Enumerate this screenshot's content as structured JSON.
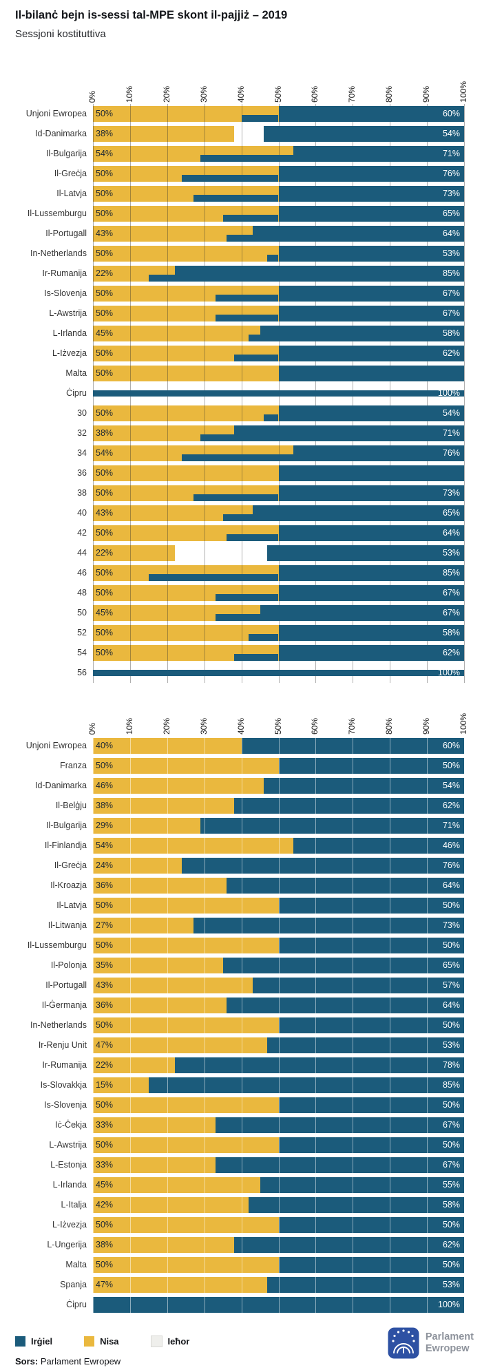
{
  "header": {
    "title": "Il-bilanċ bejn is-sessi tal-MPE skont il-pajjiż – 2019",
    "subtitle": "Sessjoni kostituttiva"
  },
  "colors": {
    "irgiel": "#1b5b7b",
    "nisa": "#eab83e",
    "iehor": "#efefec",
    "iehor_border": "#d8d8d4"
  },
  "legend": {
    "items": [
      {
        "label": "Irġiel",
        "color": "#1b5b7b"
      },
      {
        "label": "Nisa",
        "color": "#eab83e"
      },
      {
        "label": "Ieħor",
        "color": "#efefec",
        "border": "#d8d8d4"
      }
    ]
  },
  "footer": {
    "source_label": "Sors:",
    "source_value": "Parlament Ewropew",
    "logo_line1": "Parlament",
    "logo_line2": "Ewropew"
  },
  "chart_data": [
    {
      "type": "bar",
      "orientation": "horizontal",
      "stacked": true,
      "xlim": [
        0,
        100
      ],
      "x_ticks": [
        "0%",
        "10%",
        "20%",
        "30%",
        "40%",
        "50%",
        "60%",
        "70%",
        "80%",
        "90%",
        "100%"
      ],
      "grid": "vertical",
      "series_keys": [
        "nisa",
        "irgiel"
      ],
      "rows": [
        {
          "label": "Unjoni Ewropea",
          "nisa": 50,
          "irgiel": 60
        },
        {
          "label": "Id-Danimarka",
          "nisa": 38,
          "irgiel": 54
        },
        {
          "label": "Il-Bulgarija",
          "nisa": 54,
          "irgiel": 71
        },
        {
          "label": "Il-Greċja",
          "nisa": 50,
          "irgiel": 76
        },
        {
          "label": "Il-Latvja",
          "nisa": 50,
          "irgiel": 73
        },
        {
          "label": "Il-Lussemburgu",
          "nisa": 50,
          "irgiel": 65
        },
        {
          "label": "Il-Portugall",
          "nisa": 43,
          "irgiel": 64
        },
        {
          "label": "In-Netherlands",
          "nisa": 50,
          "irgiel": 53
        },
        {
          "label": "Ir-Rumanija",
          "nisa": 22,
          "irgiel": 85
        },
        {
          "label": "Is-Slovenja",
          "nisa": 50,
          "irgiel": 67
        },
        {
          "label": "L-Awstrija",
          "nisa": 50,
          "irgiel": 67
        },
        {
          "label": "L-Irlanda",
          "nisa": 45,
          "irgiel": 58
        },
        {
          "label": "L-Iżvezja",
          "nisa": 50,
          "irgiel": 62
        },
        {
          "label": "Malta",
          "nisa": 50,
          "irgiel": null
        },
        {
          "label": "Ċipru",
          "nisa": null,
          "irgiel": 100,
          "thin": true
        },
        {
          "label": "30",
          "nisa": 50,
          "irgiel": 54
        },
        {
          "label": "32",
          "nisa": 38,
          "irgiel": 71
        },
        {
          "label": "34",
          "nisa": 54,
          "irgiel": 76
        },
        {
          "label": "36",
          "nisa": 50,
          "irgiel": null
        },
        {
          "label": "38",
          "nisa": 50,
          "irgiel": 73
        },
        {
          "label": "40",
          "nisa": 43,
          "irgiel": 65
        },
        {
          "label": "42",
          "nisa": 50,
          "irgiel": 64
        },
        {
          "label": "44",
          "nisa": 22,
          "irgiel": 53
        },
        {
          "label": "46",
          "nisa": 50,
          "irgiel": 85
        },
        {
          "label": "48",
          "nisa": 50,
          "irgiel": 67
        },
        {
          "label": "50",
          "nisa": 45,
          "irgiel": 67
        },
        {
          "label": "52",
          "nisa": 50,
          "irgiel": 58
        },
        {
          "label": "54",
          "nisa": 50,
          "irgiel": 62
        },
        {
          "label": "56",
          "nisa": null,
          "irgiel": 100,
          "thin": true
        }
      ]
    },
    {
      "type": "bar",
      "orientation": "horizontal",
      "stacked": true,
      "xlim": [
        0,
        100
      ],
      "x_ticks": [
        "0%",
        "10%",
        "20%",
        "30%",
        "40%",
        "50%",
        "60%",
        "70%",
        "80%",
        "90%",
        "100%"
      ],
      "grid": "vertical",
      "series_keys": [
        "nisa",
        "irgiel"
      ],
      "rows": [
        {
          "label": "Unjoni Ewropea",
          "nisa": 40,
          "irgiel": 60
        },
        {
          "label": "Franza",
          "nisa": 50,
          "irgiel": 50
        },
        {
          "label": "Id-Danimarka",
          "nisa": 46,
          "irgiel": 54
        },
        {
          "label": "Il-Belġju",
          "nisa": 38,
          "irgiel": 62
        },
        {
          "label": "Il-Bulgarija",
          "nisa": 29,
          "irgiel": 71
        },
        {
          "label": "Il-Finlandja",
          "nisa": 54,
          "irgiel": 46
        },
        {
          "label": "Il-Greċja",
          "nisa": 24,
          "irgiel": 76
        },
        {
          "label": "Il-Kroazja",
          "nisa": 36,
          "irgiel": 64
        },
        {
          "label": "Il-Latvja",
          "nisa": 50,
          "irgiel": 50
        },
        {
          "label": "Il-Litwanja",
          "nisa": 27,
          "irgiel": 73
        },
        {
          "label": "Il-Lussemburgu",
          "nisa": 50,
          "irgiel": 50
        },
        {
          "label": "Il-Polonja",
          "nisa": 35,
          "irgiel": 65
        },
        {
          "label": "Il-Portugall",
          "nisa": 43,
          "irgiel": 57
        },
        {
          "label": "Il-Ġermanja",
          "nisa": 36,
          "irgiel": 64
        },
        {
          "label": "In-Netherlands",
          "nisa": 50,
          "irgiel": 50
        },
        {
          "label": "Ir-Renju Unit",
          "nisa": 47,
          "irgiel": 53
        },
        {
          "label": "Ir-Rumanija",
          "nisa": 22,
          "irgiel": 78
        },
        {
          "label": "Is-Slovakkja",
          "nisa": 15,
          "irgiel": 85
        },
        {
          "label": "Is-Slovenja",
          "nisa": 50,
          "irgiel": 50
        },
        {
          "label": "Iċ-Ċekja",
          "nisa": 33,
          "irgiel": 67
        },
        {
          "label": "L-Awstrija",
          "nisa": 50,
          "irgiel": 50
        },
        {
          "label": "L-Estonja",
          "nisa": 33,
          "irgiel": 67
        },
        {
          "label": "L-Irlanda",
          "nisa": 45,
          "irgiel": 55
        },
        {
          "label": "L-Italja",
          "nisa": 42,
          "irgiel": 58
        },
        {
          "label": "L-Iżvezja",
          "nisa": 50,
          "irgiel": 50
        },
        {
          "label": "L-Ungerija",
          "nisa": 38,
          "irgiel": 62
        },
        {
          "label": "Malta",
          "nisa": 50,
          "irgiel": 50
        },
        {
          "label": "Spanja",
          "nisa": 47,
          "irgiel": 53
        },
        {
          "label": "Ċipru",
          "nisa": null,
          "irgiel": 100
        }
      ]
    }
  ]
}
